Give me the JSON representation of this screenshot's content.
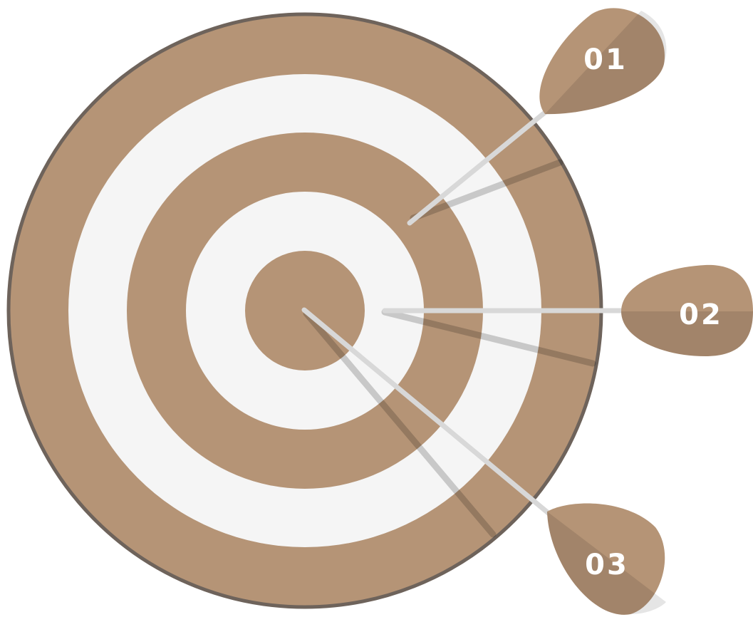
{
  "darts": [
    {
      "label": "01"
    },
    {
      "label": "02"
    },
    {
      "label": "03"
    }
  ]
}
